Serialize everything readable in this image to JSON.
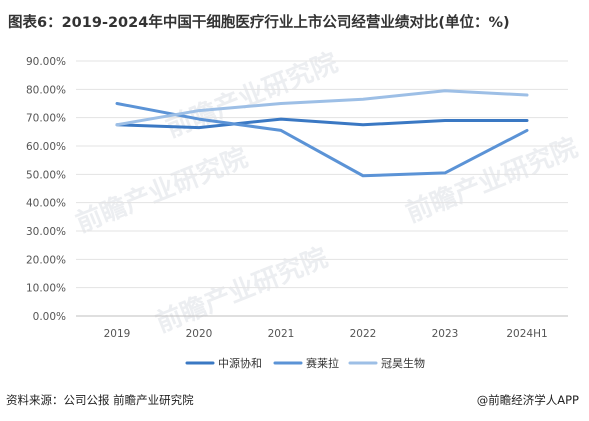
{
  "title": "图表6：2019-2024年中国干细胞医疗行业上市公司经营业绩对比(单位：%)",
  "footer": {
    "source": "资料来源：公司公报 前瞻产业研究院",
    "brand": "@前瞻经济学人APP"
  },
  "watermark": "前瞻产业研究院",
  "chart_data": {
    "type": "line",
    "x": [
      "2019",
      "2020",
      "2021",
      "2022",
      "2023",
      "2024H1"
    ],
    "series": [
      {
        "name": "中源协和",
        "color": "#3a78c3",
        "values": [
          67.5,
          66.5,
          69.5,
          67.5,
          69.0,
          69.0
        ]
      },
      {
        "name": "赛莱拉",
        "color": "#5b93d6",
        "values": [
          75.0,
          69.5,
          65.5,
          49.5,
          50.5,
          65.5
        ]
      },
      {
        "name": "冠昊生物",
        "color": "#9dbfe6",
        "values": [
          67.5,
          72.5,
          75.0,
          76.5,
          79.5,
          78.0
        ]
      }
    ],
    "ylim": [
      0,
      90
    ],
    "yticks": [
      "0.00%",
      "10.00%",
      "20.00%",
      "30.00%",
      "40.00%",
      "50.00%",
      "60.00%",
      "70.00%",
      "80.00%",
      "90.00%"
    ],
    "grid": true,
    "legend_position": "bottom"
  }
}
